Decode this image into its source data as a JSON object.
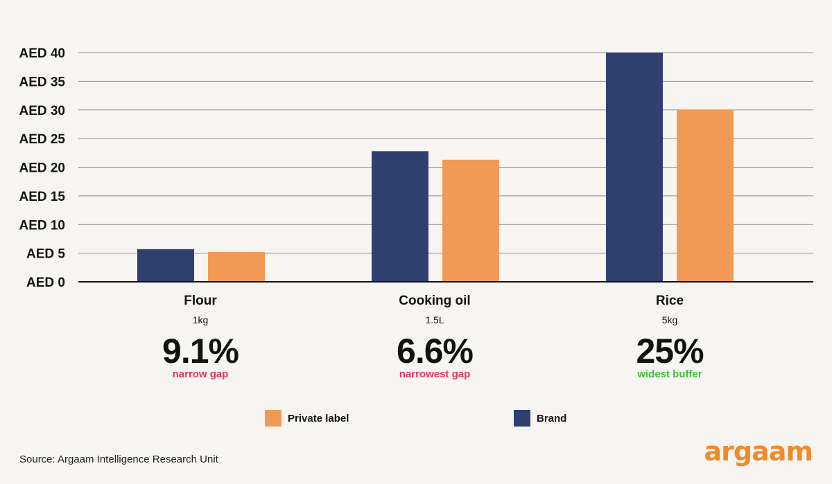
{
  "chart_data": {
    "type": "bar",
    "categories": [
      "Flour",
      "Cooking oil",
      "Rice"
    ],
    "units": [
      "1kg",
      "1.5L",
      "5kg"
    ],
    "series": [
      {
        "name": "Brand",
        "values": [
          5.7,
          22.8,
          40.0
        ],
        "color": "#2f3f6e"
      },
      {
        "name": "Private label",
        "values": [
          5.2,
          21.3,
          30.0
        ],
        "color": "#f19a55"
      }
    ],
    "yticks": [
      "AED 0",
      "AED 5",
      "AED 10",
      "AED 15",
      "AED 20",
      "AED 25",
      "AED 30",
      "AED 35",
      "AED 40"
    ],
    "ylim": [
      0,
      40
    ],
    "grid": true,
    "gaps": [
      {
        "pct": "9.1%",
        "note": "narrow gap",
        "color": "#e8325a"
      },
      {
        "pct": "6.6%",
        "note": "narrowest gap",
        "color": "#e8325a"
      },
      {
        "pct": "25%",
        "note": "widest buffer",
        "color": "#3fbf3a"
      }
    ],
    "legend": [
      {
        "label": "Private label",
        "color": "#f19a55"
      },
      {
        "label": "Brand",
        "color": "#2f3f6e"
      }
    ]
  },
  "source": "Source: Argaam Intelligence Research Unit",
  "logo": {
    "text": "argaam",
    "color": "#f08a2c"
  }
}
